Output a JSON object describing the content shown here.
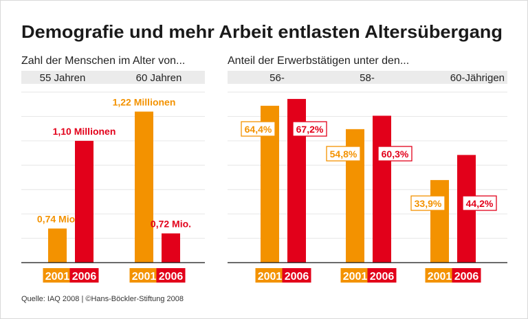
{
  "title": "Demografie und mehr Arbeit entlasten Altersübergang",
  "source": "Quelle: IAQ 2008 | ©Hans-Böckler-Stiftung 2008",
  "colors": {
    "2001": "#f39200",
    "2006": "#e2001a",
    "band": "#ebebeb",
    "grid": "#e6e6e6"
  },
  "chart_data": [
    {
      "type": "bar",
      "title": "Zahl der Menschen im Alter von...",
      "categories": [
        "55 Jahren",
        "60 Jahren"
      ],
      "series": [
        {
          "name": "2001",
          "values": [
            0.74,
            1.22
          ],
          "labels": [
            "0,74 Mio.",
            "1,22 Millionen"
          ]
        },
        {
          "name": "2006",
          "values": [
            1.1,
            0.72
          ],
          "labels": [
            "1,10 Millionen",
            "0,72 Mio."
          ]
        }
      ],
      "unit": "Millionen",
      "ylim": [
        0.6,
        1.3
      ],
      "grid": true
    },
    {
      "type": "bar",
      "title": "Anteil der Erwerbstätigen unter den...",
      "categories": [
        "56-",
        "58-",
        "60-Jährigen"
      ],
      "series": [
        {
          "name": "2001",
          "values": [
            64.4,
            54.8,
            33.9
          ],
          "labels": [
            "64,4%",
            "54,8%",
            "33,9%"
          ]
        },
        {
          "name": "2006",
          "values": [
            67.2,
            60.3,
            44.2
          ],
          "labels": [
            "67,2%",
            "60,3%",
            "44,2%"
          ]
        }
      ],
      "unit": "%",
      "ylim": [
        0,
        70
      ],
      "grid": true
    }
  ]
}
